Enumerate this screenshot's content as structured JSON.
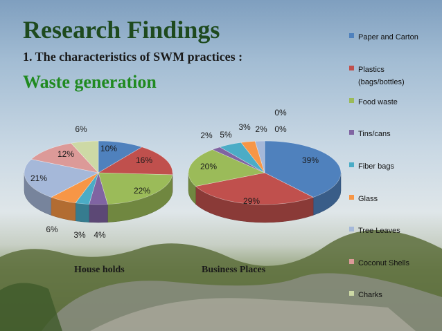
{
  "slide": {
    "title": "Research Findings",
    "subtitle": "1. The characteristics of SWM practices :",
    "subheading": "Waste generation"
  },
  "colors": [
    "#4f81bd",
    "#c0504d",
    "#9bbb59",
    "#8064a2",
    "#4bacc6",
    "#f79646",
    "#a5b8d9",
    "#dc9a98",
    "#cdd9a5"
  ],
  "legend": [
    {
      "label": "Paper and Carton"
    },
    {
      "label": "Plastics",
      "label2": "(bags/bottles)"
    },
    {
      "label": "Food waste"
    },
    {
      "label": "Tins/cans"
    },
    {
      "label": "Fiber bags"
    },
    {
      "label": "Glass"
    },
    {
      "label": "Tree Leaves"
    },
    {
      "label": "Coconut Shells"
    },
    {
      "label": "Charks"
    }
  ],
  "chart_data": [
    {
      "type": "pie",
      "title": "House holds",
      "categories": [
        "Paper and Carton",
        "Plastics (bags/bottles)",
        "Food waste",
        "Tins/cans",
        "Fiber bags",
        "Glass",
        "Tree Leaves",
        "Coconut Shells",
        "Charks"
      ],
      "values": [
        10,
        16,
        22,
        4,
        3,
        6,
        21,
        12,
        6
      ],
      "labels": [
        "10%",
        "16%",
        "22%",
        "4%",
        "3%",
        "6%",
        "21%",
        "12%",
        "6%"
      ]
    },
    {
      "type": "pie",
      "title": "Business  Places",
      "categories": [
        "Paper and Carton",
        "Plastics (bags/bottles)",
        "Food waste",
        "Tins/cans",
        "Fiber bags",
        "Glass",
        "Tree Leaves",
        "Coconut Shells",
        "Charks"
      ],
      "values": [
        39,
        29,
        20,
        2,
        5,
        3,
        2,
        0,
        0
      ],
      "labels": [
        "39%",
        "29%",
        "20%",
        "2%",
        "5%",
        "3%",
        "2%",
        "0%",
        "0%"
      ]
    }
  ]
}
